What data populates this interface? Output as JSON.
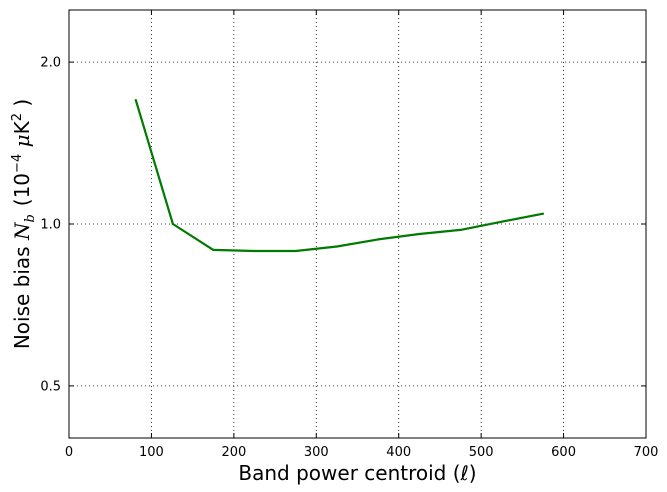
{
  "chart_data": {
    "type": "line",
    "xlabel": "Band power centroid (ℓ)",
    "ylabel": "Noise bias N_b (10^-4 μK^2 )",
    "ylabel_parts": {
      "prefix": "Noise bias ",
      "var": "N",
      "var_sub": "b",
      "unit_open": "(10",
      "unit_exp": "−4",
      "unit_mu": " μ",
      "unit_k": "K",
      "unit_k_exp": "2",
      "unit_close": " )"
    },
    "xlim": [
      0,
      700
    ],
    "ylim": [
      0.4,
      2.5
    ],
    "yscale": "log",
    "grid": true,
    "xticks": [
      0,
      100,
      200,
      300,
      400,
      500,
      600,
      700
    ],
    "yticks": [
      0.5,
      1.0,
      2.0
    ],
    "yticklabels": [
      "0.5",
      "1.0",
      "2.0"
    ],
    "series": [
      {
        "color": "#007a00",
        "x": [
          81,
          126,
          175,
          225,
          275,
          325,
          375,
          425,
          475,
          525,
          575
        ],
        "y": [
          1.7,
          1.0,
          0.895,
          0.891,
          0.891,
          0.908,
          0.936,
          0.958,
          0.975,
          1.01,
          1.045
        ]
      }
    ]
  }
}
